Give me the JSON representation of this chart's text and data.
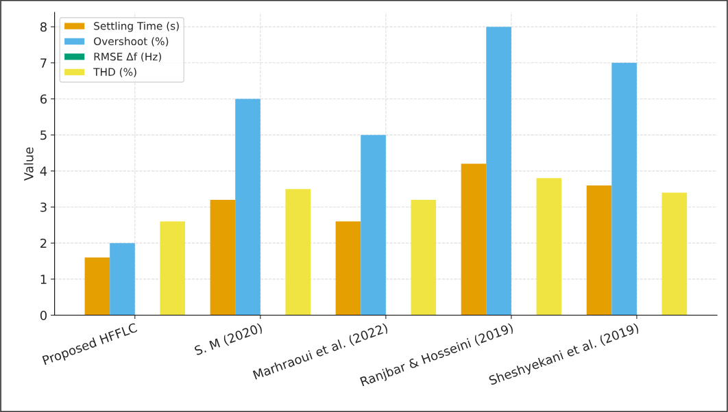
{
  "chart_data": {
    "type": "bar",
    "ylabel": "Value",
    "categories": [
      "Proposed HFFLC",
      "S. M (2020)",
      "Marhraoui et al. (2022)",
      "Ranjbar & Hosseini (2019)",
      "Sheshyekani et al. (2019)"
    ],
    "series": [
      {
        "name": "Settling Time (s)",
        "color": "#e69f00",
        "values": [
          1.6,
          3.2,
          2.6,
          4.2,
          3.6
        ]
      },
      {
        "name": "Overshoot (%)",
        "color": "#56b4e9",
        "values": [
          2.0,
          6.0,
          5.0,
          8.0,
          7.0
        ]
      },
      {
        "name": "RMSE Δf (Hz)",
        "color": "#009e73",
        "values": [
          0,
          0,
          0,
          0,
          0
        ]
      },
      {
        "name": "THD (%)",
        "color": "#f0e442",
        "values": [
          2.6,
          3.5,
          3.2,
          3.8,
          3.4
        ]
      }
    ],
    "ylim": [
      0,
      8.4
    ],
    "yticks": [
      0,
      1,
      2,
      3,
      4,
      5,
      6,
      7,
      8
    ],
    "grid": true,
    "legend": "top left"
  }
}
